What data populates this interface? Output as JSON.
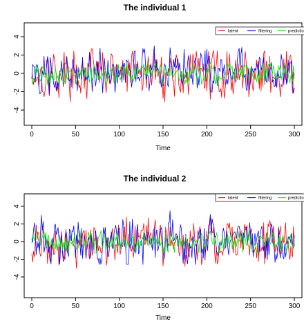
{
  "chart_data": [
    {
      "type": "line",
      "title": "The individual 1",
      "xlabel": "Time",
      "ylabel": "",
      "xlim": [
        0,
        300
      ],
      "ylim": [
        -5,
        5
      ],
      "x_ticks": [
        0,
        50,
        100,
        150,
        200,
        250,
        300
      ],
      "y_ticks": [
        -4,
        -2,
        0,
        2,
        4
      ],
      "legend": {
        "placement": "top-right",
        "entries": [
          "latent",
          "filtering",
          "prediction"
        ]
      },
      "colors": {
        "latent": "#ff0000",
        "filtering": "#0000ff",
        "prediction": "#00ee00"
      },
      "series": [
        {
          "name": "latent",
          "amplitude": 1.2,
          "min": -3.1,
          "max": 2.9
        },
        {
          "name": "filtering",
          "amplitude": 1.1,
          "min": -2.4,
          "max": 3.0
        },
        {
          "name": "prediction",
          "amplitude": 0.6,
          "min": -1.2,
          "max": 1.2
        }
      ],
      "n_points": 300
    },
    {
      "type": "line",
      "title": "The individual 2",
      "xlabel": "Time",
      "ylabel": "",
      "xlim": [
        0,
        300
      ],
      "ylim": [
        -5,
        5
      ],
      "x_ticks": [
        0,
        50,
        100,
        150,
        200,
        250,
        300
      ],
      "y_ticks": [
        -4,
        -2,
        0,
        2,
        4
      ],
      "legend": {
        "placement": "top-right",
        "entries": [
          "latent",
          "filtering",
          "prediction"
        ]
      },
      "colors": {
        "latent": "#ff0000",
        "filtering": "#0000ff",
        "prediction": "#00ee00"
      },
      "series": [
        {
          "name": "latent",
          "amplitude": 1.2,
          "min": -3.4,
          "max": 2.8
        },
        {
          "name": "filtering",
          "amplitude": 1.2,
          "min": -2.6,
          "max": 3.5
        },
        {
          "name": "prediction",
          "amplitude": 0.6,
          "min": -1.3,
          "max": 1.3
        }
      ],
      "n_points": 300
    }
  ]
}
